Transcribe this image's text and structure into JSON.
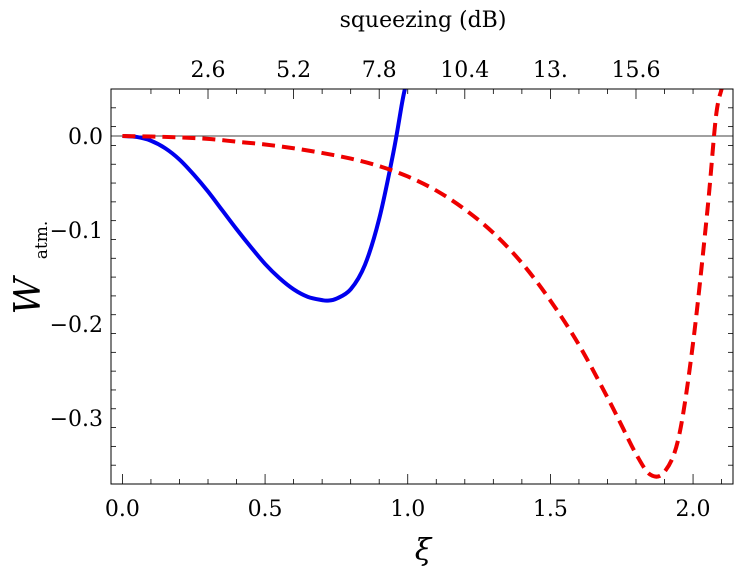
{
  "chart_data": {
    "type": "line",
    "title": "",
    "xlabel": "ξ",
    "ylabel": {
      "main": "W",
      "subscript": "atm."
    },
    "top_axis_label": "squeezing (dB)",
    "xlim": [
      -0.04,
      2.14
    ],
    "ylim": [
      -0.37,
      0.05
    ],
    "x_ticks": [
      0.0,
      0.5,
      1.0,
      1.5,
      2.0
    ],
    "x_tick_labels": [
      "0.0",
      "0.5",
      "1.0",
      "1.5",
      "2.0"
    ],
    "y_ticks": [
      0.0,
      -0.1,
      -0.2,
      -0.3
    ],
    "y_tick_labels": [
      "0.0",
      "−0.1",
      "−0.2",
      "−0.3"
    ],
    "top_ticks": [
      0.3,
      0.6,
      0.9,
      1.2,
      1.5,
      1.8
    ],
    "top_tick_labels": [
      "2.6",
      "5.2",
      "7.8",
      "10.4",
      "13.",
      "15.6"
    ],
    "zero_line": 0.0,
    "series": [
      {
        "name": "solid",
        "color": "#0000ee",
        "style": "solid",
        "x": [
          0.0,
          0.05,
          0.1,
          0.15,
          0.2,
          0.25,
          0.3,
          0.35,
          0.4,
          0.45,
          0.5,
          0.55,
          0.6,
          0.65,
          0.7,
          0.72,
          0.75,
          0.8,
          0.85,
          0.9,
          0.95,
          0.98,
          0.99
        ],
        "values": [
          0.0,
          -0.001,
          -0.005,
          -0.013,
          -0.025,
          -0.041,
          -0.059,
          -0.079,
          -0.099,
          -0.118,
          -0.136,
          -0.151,
          -0.163,
          -0.171,
          -0.1745,
          -0.175,
          -0.173,
          -0.163,
          -0.137,
          -0.088,
          -0.017,
          0.035,
          0.05
        ]
      },
      {
        "name": "dashed",
        "color": "#ee0000",
        "style": "dashed",
        "x": [
          0.0,
          0.1,
          0.2,
          0.3,
          0.4,
          0.5,
          0.6,
          0.7,
          0.8,
          0.9,
          1.0,
          1.1,
          1.2,
          1.3,
          1.4,
          1.5,
          1.6,
          1.7,
          1.75,
          1.8,
          1.85,
          1.9,
          1.95,
          2.0,
          2.05,
          2.08,
          2.1
        ],
        "values": [
          0.0,
          -0.0005,
          -0.0015,
          -0.003,
          -0.006,
          -0.009,
          -0.013,
          -0.018,
          -0.024,
          -0.032,
          -0.043,
          -0.058,
          -0.078,
          -0.103,
          -0.135,
          -0.175,
          -0.222,
          -0.278,
          -0.308,
          -0.338,
          -0.36,
          -0.357,
          -0.32,
          -0.22,
          -0.08,
          0.02,
          0.05
        ]
      }
    ]
  }
}
